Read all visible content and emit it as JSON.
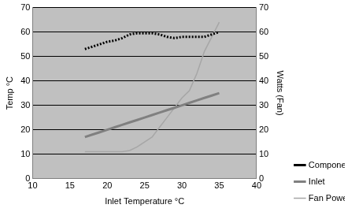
{
  "chart_data": {
    "type": "line",
    "x_label": "Inlet Temperature °C",
    "y_label": "Temp °C",
    "y2_label": "Watts (Fan)",
    "x": [
      17,
      18,
      19,
      20,
      21,
      22,
      23,
      24,
      25,
      26,
      27,
      28,
      29,
      30,
      31,
      32,
      33,
      34,
      35
    ],
    "xlim": [
      10,
      40
    ],
    "xticks": [
      10,
      15,
      20,
      25,
      30,
      35,
      40
    ],
    "ylim": [
      0,
      70
    ],
    "yticks": [
      0,
      10,
      20,
      30,
      40,
      50,
      60,
      70
    ],
    "y2lim": [
      0,
      70
    ],
    "y2ticks": [
      0,
      10,
      20,
      30,
      40,
      50,
      60,
      70
    ],
    "grid": true,
    "legend": "right",
    "series": [
      {
        "name": "Component",
        "color": "#000000",
        "line_style": "dotted",
        "marker": "none",
        "values": [
          53,
          54,
          55,
          56,
          56.5,
          57.5,
          59,
          59.5,
          59.5,
          59.5,
          59,
          58,
          57.5,
          58,
          58,
          58,
          58,
          59,
          60
        ]
      },
      {
        "name": "Inlet",
        "color": "#808080",
        "line_style": "solid",
        "marker": "none",
        "values": [
          17,
          18,
          19,
          20,
          21,
          22,
          23,
          24,
          25,
          26,
          27,
          28,
          29,
          30,
          31,
          32,
          33,
          34,
          35
        ]
      },
      {
        "name": "Fan Power",
        "color": "#a6a6a6",
        "line_style": "solid",
        "marker": "none",
        "axis": "y2",
        "values": [
          11,
          11,
          11,
          11,
          11,
          11,
          11.5,
          13,
          15,
          17,
          21,
          25,
          29,
          33,
          36,
          43,
          52,
          58,
          64
        ]
      }
    ]
  }
}
